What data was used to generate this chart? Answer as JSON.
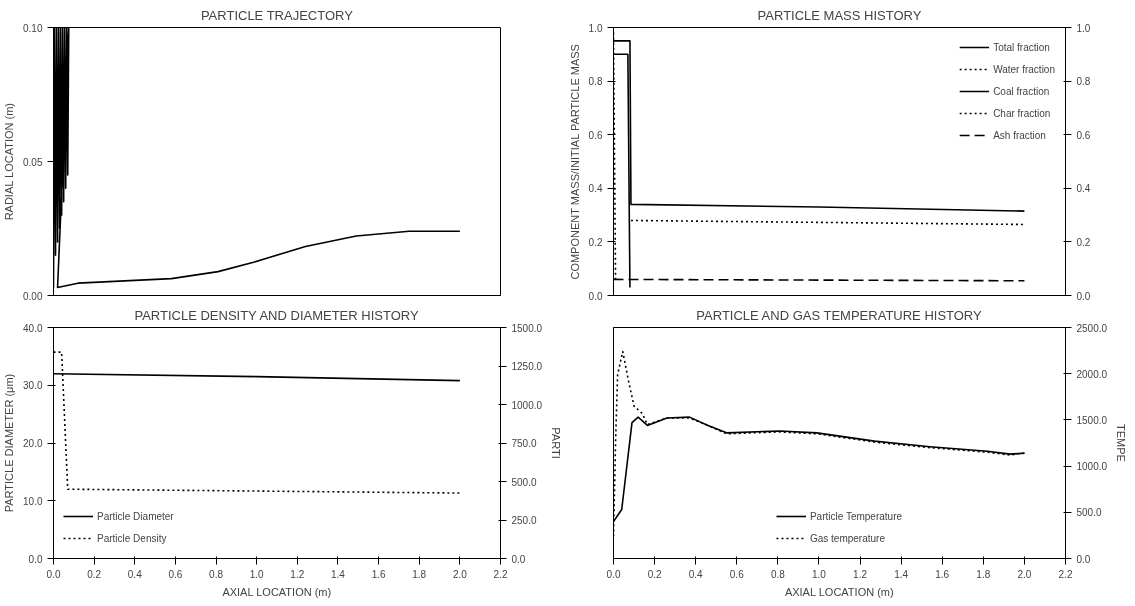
{
  "chart_data": [
    {
      "type": "line",
      "title": "PARTICLE TRAJECTORY",
      "ylabel": "RADIAL LOCATION (m)",
      "xlim": [
        0,
        2.2
      ],
      "ylim": [
        0,
        0.1
      ],
      "yticks": [
        {
          "value": 0,
          "label": "0.00"
        },
        {
          "value": 0.05,
          "label": "0.05"
        },
        {
          "value": 0.1,
          "label": "0.10"
        }
      ],
      "tick_labels": "y",
      "legend": false,
      "series": [
        {
          "color": "#000000",
          "line_style": "solid",
          "x": [
            0.0,
            0.005,
            0.01,
            0.015,
            0.02,
            0.025,
            0.03,
            0.035,
            0.04,
            0.045,
            0.05,
            0.055,
            0.06,
            0.065,
            0.07,
            0.075,
            0.02,
            0.12,
            0.58,
            0.81,
            0.98,
            1.24,
            1.49,
            1.75,
            2.0
          ],
          "values": [
            0.003,
            0.1,
            0.015,
            0.1,
            0.02,
            0.1,
            0.025,
            0.1,
            0.03,
            0.1,
            0.035,
            0.1,
            0.04,
            0.1,
            0.045,
            0.1,
            0.003,
            0.0046,
            0.0063,
            0.0089,
            0.0123,
            0.0183,
            0.0222,
            0.024,
            0.024
          ]
        }
      ]
    },
    {
      "type": "line",
      "title": "PARTICLE MASS HISTORY",
      "ylabel": "COMPONENT MASS/INITIAL PARTICLE MASS",
      "xlim": [
        0,
        2.2
      ],
      "ylim": [
        0,
        1.0
      ],
      "y2lim": [
        0,
        1.0
      ],
      "yticks": [
        {
          "value": 0,
          "label": "0.0"
        },
        {
          "value": 0.2,
          "label": "0.2"
        },
        {
          "value": 0.4,
          "label": "0.4"
        },
        {
          "value": 0.6,
          "label": "0.6"
        },
        {
          "value": 0.8,
          "label": "0.8"
        },
        {
          "value": 1.0,
          "label": "1.0"
        }
      ],
      "y2ticks": [
        {
          "value": 0,
          "label": "0.0"
        },
        {
          "value": 0.2,
          "label": "0.2"
        },
        {
          "value": 0.4,
          "label": "0.4"
        },
        {
          "value": 0.6,
          "label": "0.6"
        },
        {
          "value": 0.8,
          "label": "0.8"
        },
        {
          "value": 1.0,
          "label": "1.0"
        }
      ],
      "tick_labels": "y",
      "legend": "top right",
      "series": [
        {
          "name": "Total fraction",
          "color": "#000000",
          "line_style": "solid",
          "x": [
            0.0,
            0.08,
            0.085,
            1.0,
            2.0
          ],
          "values": [
            0.95,
            0.95,
            0.34,
            0.33,
            0.315
          ]
        },
        {
          "name": "Water fraction",
          "color": "#000000",
          "line_style": "dotted",
          "x": [
            0.0,
            0.005,
            0.01
          ],
          "values": [
            0.98,
            0.5,
            0.06
          ]
        },
        {
          "name": "Coal fraction",
          "color": "#000000",
          "line_style": "solid",
          "x": [
            0.0,
            0.07,
            0.08
          ],
          "values": [
            0.9,
            0.9,
            0.03
          ]
        },
        {
          "name": "Char fraction",
          "color": "#000000",
          "line_style": "dotted",
          "x": [
            0.085,
            2.0
          ],
          "values": [
            0.28,
            0.265
          ]
        },
        {
          "name": "Ash fraction",
          "color": "#000000",
          "line_style": "dashed",
          "x": [
            0.0,
            2.0
          ],
          "values": [
            0.06,
            0.055
          ]
        }
      ]
    },
    {
      "type": "line",
      "title": "PARTICLE DENSITY AND DIAMETER HISTORY",
      "xlabel": "AXIAL LOCATION (m)",
      "ylabel": "PARTICLE DIAMETER (μm)",
      "y2label": "PARTI",
      "xlim": [
        0,
        2.2
      ],
      "ylim": [
        0,
        40
      ],
      "y2lim": [
        0,
        1500
      ],
      "xticks": [
        {
          "value": 0,
          "label": "0.0"
        },
        {
          "value": 0.2,
          "label": "0.2"
        },
        {
          "value": 0.4,
          "label": "0.4"
        },
        {
          "value": 0.6,
          "label": "0.6"
        },
        {
          "value": 0.8,
          "label": "0.8"
        },
        {
          "value": 1.0,
          "label": "1.0"
        },
        {
          "value": 1.2,
          "label": "1.2"
        },
        {
          "value": 1.4,
          "label": "1.4"
        },
        {
          "value": 1.6,
          "label": "1.6"
        },
        {
          "value": 1.8,
          "label": "1.8"
        },
        {
          "value": 2.0,
          "label": "2.0"
        },
        {
          "value": 2.2,
          "label": "2.2"
        }
      ],
      "yticks": [
        {
          "value": 0,
          "label": "0.0"
        },
        {
          "value": 10,
          "label": "10.0"
        },
        {
          "value": 20,
          "label": "20.0"
        },
        {
          "value": 30,
          "label": "30.0"
        },
        {
          "value": 40,
          "label": "40.0"
        }
      ],
      "y2ticks": [
        {
          "value": 0,
          "label": "0.0"
        },
        {
          "value": 250,
          "label": "250.0"
        },
        {
          "value": 500,
          "label": "500.0"
        },
        {
          "value": 750,
          "label": "750.0"
        },
        {
          "value": 1000,
          "label": "1000.0"
        },
        {
          "value": 1250,
          "label": "1250.0"
        },
        {
          "value": 1500,
          "label": "1500.0"
        }
      ],
      "legend": "bottom left",
      "series": [
        {
          "name": "Particle Diameter",
          "color": "#000000",
          "line_style": "solid",
          "x": [
            0.0,
            1.0,
            2.0
          ],
          "values": [
            32.0,
            31.5,
            30.8
          ]
        },
        {
          "name": "Particle Density",
          "color": "#000000",
          "line_style": "dotted",
          "axis": "y2",
          "x": [
            0.0,
            0.04,
            0.07,
            2.0
          ],
          "values": [
            1340,
            1340,
            450,
            425
          ]
        }
      ]
    },
    {
      "type": "line",
      "title": "PARTICLE AND GAS TEMPERATURE HISTORY",
      "xlabel": "AXIAL LOCATION (m)",
      "y2label": "TEMPE",
      "xlim": [
        0,
        2.2
      ],
      "y2lim": [
        0,
        2500
      ],
      "xticks": [
        {
          "value": 0,
          "label": "0.0"
        },
        {
          "value": 0.2,
          "label": "0.2"
        },
        {
          "value": 0.4,
          "label": "0.4"
        },
        {
          "value": 0.6,
          "label": "0.6"
        },
        {
          "value": 0.8,
          "label": "0.8"
        },
        {
          "value": 1.0,
          "label": "1.0"
        },
        {
          "value": 1.2,
          "label": "1.2"
        },
        {
          "value": 1.4,
          "label": "1.4"
        },
        {
          "value": 1.6,
          "label": "1.6"
        },
        {
          "value": 1.8,
          "label": "1.8"
        },
        {
          "value": 2.0,
          "label": "2.0"
        },
        {
          "value": 2.2,
          "label": "2.2"
        }
      ],
      "y2ticks": [
        {
          "value": 0,
          "label": "0.0"
        },
        {
          "value": 500,
          "label": "500.0"
        },
        {
          "value": 1000,
          "label": "1000.0"
        },
        {
          "value": 1500,
          "label": "1500.0"
        },
        {
          "value": 2000,
          "label": "2000.0"
        },
        {
          "value": 2500,
          "label": "2500.0"
        }
      ],
      "legend": "bottom",
      "series": [
        {
          "name": "Particle Temperature",
          "color": "#000000",
          "line_style": "solid",
          "axis": "y2",
          "x": [
            0.0,
            0.04,
            0.09,
            0.12,
            0.165,
            0.26,
            0.37,
            0.46,
            0.55,
            0.81,
            0.99,
            1.27,
            1.54,
            1.82,
            1.93,
            2.0
          ],
          "values": [
            400,
            530,
            1470,
            1530,
            1440,
            1520,
            1530,
            1440,
            1360,
            1380,
            1360,
            1270,
            1210,
            1160,
            1130,
            1140
          ]
        },
        {
          "name": "Gas temperature",
          "color": "#000000",
          "line_style": "dotted",
          "axis": "y2",
          "x": [
            0.0,
            0.01,
            0.02,
            0.045,
            0.075,
            0.1,
            0.14,
            0.165,
            0.26,
            0.37,
            0.46,
            0.55,
            0.81,
            0.99,
            1.27,
            1.54,
            1.82,
            1.93,
            2.0
          ],
          "values": [
            240,
            1260,
            1990,
            2240,
            1900,
            1650,
            1570,
            1450,
            1520,
            1520,
            1440,
            1350,
            1370,
            1350,
            1260,
            1200,
            1150,
            1120,
            1140
          ]
        }
      ]
    }
  ]
}
